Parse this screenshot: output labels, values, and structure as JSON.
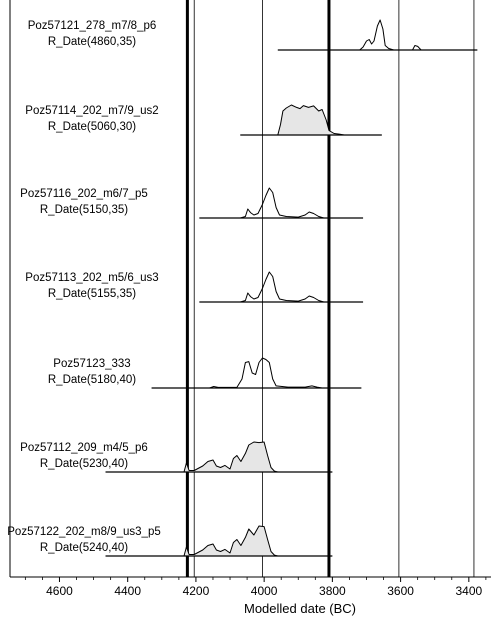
{
  "chart_data": {
    "type": "area",
    "title": "",
    "xlabel": "Modelled date (BC)",
    "ylabel": "",
    "xlim": [
      4745,
      3335
    ],
    "x_ticks": [
      4600,
      4400,
      4200,
      4000,
      3800,
      3600,
      3400
    ],
    "x_tick_labels": [
      "4600",
      "4400",
      "4200",
      "4000",
      "3800",
      "3600",
      "3400"
    ],
    "thick_boundary_lines": [
      4225,
      3810
    ],
    "thin_reference_lines": [
      4205,
      4005,
      3605,
      3385
    ],
    "series": [
      {
        "name": "Poz57121_278_m7/8_p6",
        "date": "R_Date(4860,35)",
        "range": [
          3960,
          3375
        ],
        "peak": 3660,
        "posterior_filled": false,
        "density": [
          [
            3720,
            0
          ],
          [
            3710,
            0.1
          ],
          [
            3700,
            0.3
          ],
          [
            3692,
            0.35
          ],
          [
            3685,
            0.2
          ],
          [
            3678,
            0.3
          ],
          [
            3668,
            0.8
          ],
          [
            3660,
            1.0
          ],
          [
            3652,
            0.7
          ],
          [
            3645,
            0.15
          ],
          [
            3635,
            0.05
          ],
          [
            3620,
            0.0
          ],
          [
            3565,
            0.0
          ],
          [
            3558,
            0.15
          ],
          [
            3550,
            0.12
          ],
          [
            3540,
            0
          ]
        ]
      },
      {
        "name": "Poz57114_202_m7/9_us2",
        "date": "R_Date(5060,30)",
        "range": [
          4070,
          3655
        ],
        "peak": 3920,
        "posterior_filled": true,
        "density": [
          [
            3960,
            0
          ],
          [
            3952,
            0.35
          ],
          [
            3945,
            0.8
          ],
          [
            3935,
            0.9
          ],
          [
            3920,
            1.0
          ],
          [
            3905,
            0.92
          ],
          [
            3895,
            0.88
          ],
          [
            3885,
            0.98
          ],
          [
            3870,
            0.92
          ],
          [
            3855,
            0.97
          ],
          [
            3840,
            0.8
          ],
          [
            3830,
            0.85
          ],
          [
            3818,
            0.5
          ],
          [
            3810,
            0.15
          ],
          [
            3795,
            0.05
          ],
          [
            3780,
            0.03
          ],
          [
            3765,
            0.0
          ]
        ]
      },
      {
        "name": "Poz57116_202_m6/7_p5",
        "date": "R_Date(5150,35)",
        "range": [
          4190,
          3710
        ],
        "peak": 3980,
        "posterior_filled": false,
        "density": [
          [
            4070,
            0
          ],
          [
            4055,
            0.05
          ],
          [
            4048,
            0.3
          ],
          [
            4040,
            0.18
          ],
          [
            4030,
            0.1
          ],
          [
            4018,
            0.15
          ],
          [
            4005,
            0.45
          ],
          [
            3995,
            0.75
          ],
          [
            3985,
            1.0
          ],
          [
            3975,
            0.85
          ],
          [
            3965,
            0.35
          ],
          [
            3955,
            0.1
          ],
          [
            3935,
            0.05
          ],
          [
            3900,
            0.03
          ],
          [
            3880,
            0.1
          ],
          [
            3868,
            0.2
          ],
          [
            3855,
            0.15
          ],
          [
            3840,
            0.05
          ],
          [
            3825,
            0
          ]
        ]
      },
      {
        "name": "Poz57113_202_m5/6_us3",
        "date": "R_Date(5155,35)",
        "range": [
          4190,
          3710
        ],
        "peak": 3980,
        "posterior_filled": false,
        "density": [
          [
            4070,
            0
          ],
          [
            4055,
            0.05
          ],
          [
            4048,
            0.3
          ],
          [
            4040,
            0.18
          ],
          [
            4030,
            0.1
          ],
          [
            4018,
            0.15
          ],
          [
            4005,
            0.45
          ],
          [
            3995,
            0.75
          ],
          [
            3985,
            1.0
          ],
          [
            3975,
            0.85
          ],
          [
            3965,
            0.35
          ],
          [
            3955,
            0.1
          ],
          [
            3935,
            0.05
          ],
          [
            3900,
            0.03
          ],
          [
            3880,
            0.1
          ],
          [
            3868,
            0.2
          ],
          [
            3855,
            0.15
          ],
          [
            3840,
            0.05
          ],
          [
            3825,
            0
          ]
        ]
      },
      {
        "name": "Poz57123_333",
        "date": "R_Date(5180,40)",
        "range": [
          4330,
          3715
        ],
        "peak": 3990,
        "posterior_filled": false,
        "density": [
          [
            4160,
            0
          ],
          [
            4148,
            0.05
          ],
          [
            4135,
            0.02
          ],
          [
            4080,
            0.02
          ],
          [
            4065,
            0.3
          ],
          [
            4055,
            0.85
          ],
          [
            4045,
            0.88
          ],
          [
            4035,
            0.5
          ],
          [
            4025,
            0.45
          ],
          [
            4015,
            0.85
          ],
          [
            4005,
            1.0
          ],
          [
            3995,
            0.95
          ],
          [
            3985,
            0.85
          ],
          [
            3975,
            0.3
          ],
          [
            3965,
            0.07
          ],
          [
            3930,
            0.03
          ],
          [
            3880,
            0.03
          ],
          [
            3860,
            0.07
          ],
          [
            3845,
            0.03
          ],
          [
            3830,
            0
          ]
        ]
      },
      {
        "name": "Poz57112_209_m4/5_p6",
        "date": "R_Date(5230,40)",
        "range": [
          4465,
          3800
        ],
        "peak": 4030,
        "posterior_filled": true,
        "density": [
          [
            4235,
            0
          ],
          [
            4228,
            0.3
          ],
          [
            4220,
            0.05
          ],
          [
            4205,
            0.05
          ],
          [
            4180,
            0.2
          ],
          [
            4165,
            0.35
          ],
          [
            4150,
            0.4
          ],
          [
            4140,
            0.2
          ],
          [
            4128,
            0.15
          ],
          [
            4115,
            0.22
          ],
          [
            4100,
            0.1
          ],
          [
            4090,
            0.45
          ],
          [
            4080,
            0.55
          ],
          [
            4068,
            0.35
          ],
          [
            4055,
            0.62
          ],
          [
            4045,
            0.9
          ],
          [
            4030,
            1.0
          ],
          [
            4015,
            0.98
          ],
          [
            4000,
            1.0
          ],
          [
            3990,
            0.55
          ],
          [
            3980,
            0.15
          ],
          [
            3970,
            0.03
          ],
          [
            3960,
            0
          ]
        ]
      },
      {
        "name": "Poz57122_202_m8/9_us3_p5",
        "date": "R_Date(5240,40)",
        "range": [
          4465,
          3800
        ],
        "peak": 4010,
        "posterior_filled": true,
        "density": [
          [
            4235,
            0
          ],
          [
            4228,
            0.3
          ],
          [
            4220,
            0.05
          ],
          [
            4205,
            0.05
          ],
          [
            4180,
            0.2
          ],
          [
            4165,
            0.35
          ],
          [
            4150,
            0.4
          ],
          [
            4140,
            0.2
          ],
          [
            4128,
            0.15
          ],
          [
            4115,
            0.22
          ],
          [
            4100,
            0.1
          ],
          [
            4090,
            0.45
          ],
          [
            4080,
            0.55
          ],
          [
            4068,
            0.35
          ],
          [
            4055,
            0.62
          ],
          [
            4045,
            0.9
          ],
          [
            4030,
            0.7
          ],
          [
            4015,
            1.0
          ],
          [
            4000,
            0.98
          ],
          [
            3990,
            0.55
          ],
          [
            3980,
            0.15
          ],
          [
            3970,
            0.03
          ],
          [
            3960,
            0
          ]
        ]
      }
    ],
    "grid": false,
    "legend": "none",
    "colors": {
      "fill": "#e6e6e6",
      "stroke": "#000000",
      "background": "#ffffff"
    }
  }
}
